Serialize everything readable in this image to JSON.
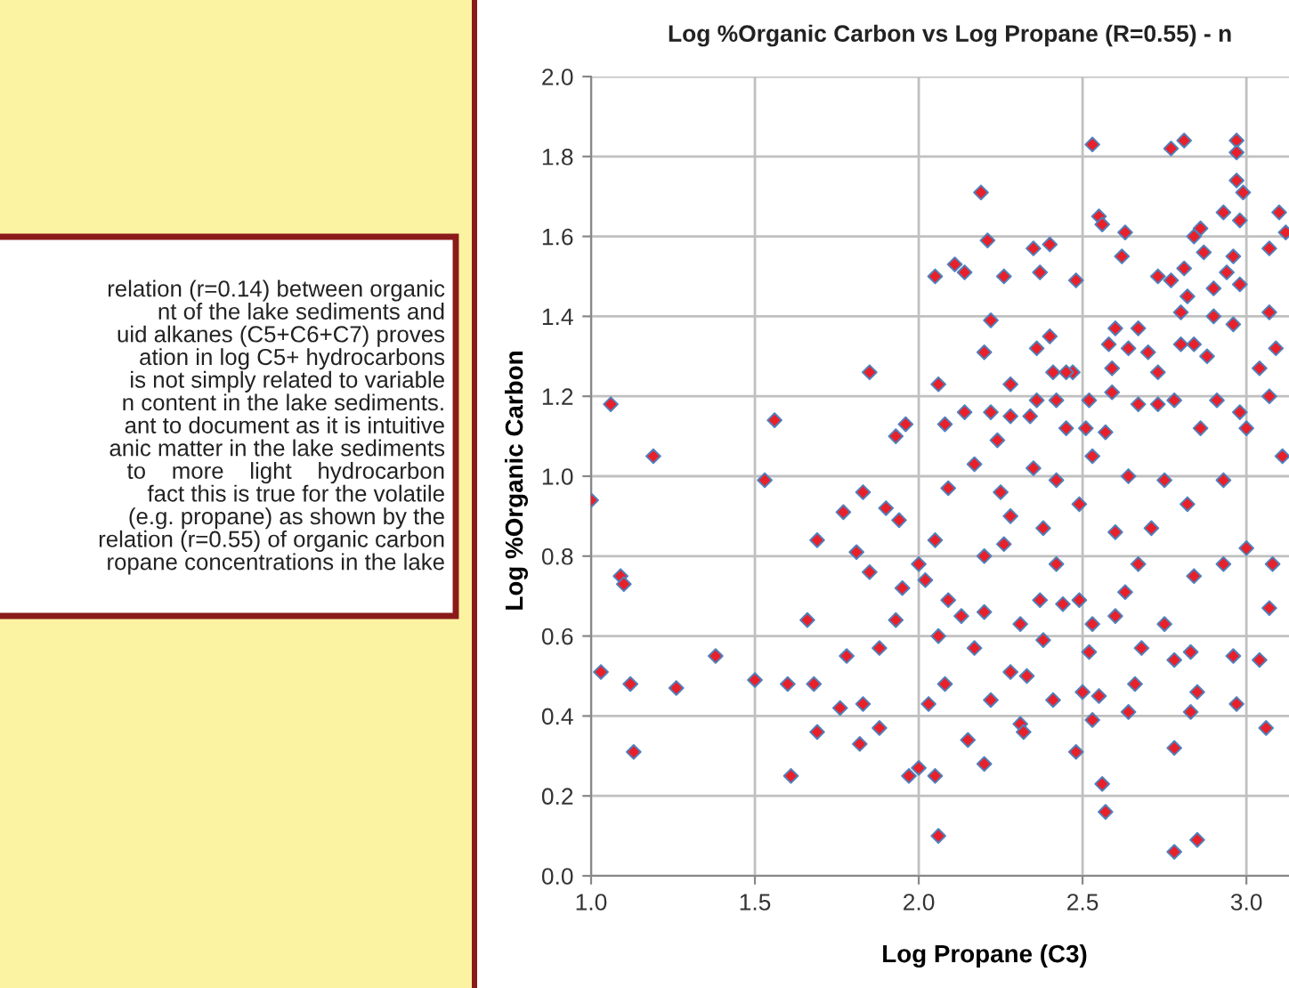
{
  "chart_data": {
    "type": "scatter",
    "title": "Log %Organic Carbon vs Log Propane (R=0.55) - n",
    "xlabel": "Log Propane (C3)",
    "ylabel": "Log %Organic Carbon",
    "annotations": [
      "relation (r=0.14) between organic\nnt of the lake sediments and\nuid alkanes (C5+C6+C7) proves\nation in log C5+ hydrocarbons\nis not simply related to variable\nn content in the lake sediments.\nant to document as it is intuitive\nanic matter in the lake sediments\nto    more    light    hydrocarbon\nfact this is true for the volatile\n(e.g. propane) as shown by the\nrelation (r=0.55) of organic carbon\nropane concentrations in the lake"
    ],
    "xlim": [
      1.0,
      3.13
    ],
    "ylim": [
      0,
      2
    ],
    "xticks": [
      {
        "value": 1,
        "label": "1.0"
      },
      {
        "value": 1.5,
        "label": "1.5"
      },
      {
        "value": 2,
        "label": "2.0"
      },
      {
        "value": 2.5,
        "label": "2.5"
      },
      {
        "value": 3,
        "label": "3.0"
      }
    ],
    "yticks": [
      {
        "value": 0,
        "label": "0.0"
      },
      {
        "value": 0.2,
        "label": "0.2"
      },
      {
        "value": 0.4,
        "label": "0.4"
      },
      {
        "value": 0.6,
        "label": "0.6"
      },
      {
        "value": 0.8,
        "label": "0.8"
      },
      {
        "value": 1,
        "label": "1.0"
      },
      {
        "value": 1.2,
        "label": "1.2"
      },
      {
        "value": 1.4,
        "label": "1.4"
      },
      {
        "value": 1.6,
        "label": "1.6"
      },
      {
        "value": 1.8,
        "label": "1.8"
      },
      {
        "value": 2,
        "label": "2.0"
      }
    ],
    "grid": true,
    "marker": "diamond",
    "series": [
      {
        "color": "#e8202a",
        "x": [
          1.0,
          1.19,
          1.03,
          1.09,
          1.1,
          1.12,
          1.13,
          1.26,
          1.38,
          1.5,
          1.53,
          1.6,
          1.61,
          1.66,
          1.69,
          1.69,
          1.68,
          1.76,
          1.77,
          1.78,
          1.81,
          1.82,
          1.83,
          1.83,
          1.88,
          1.9,
          1.85,
          1.88,
          1.94,
          1.93,
          1.97,
          2.0,
          2.05,
          2.06,
          2.03,
          2.0,
          2.05,
          2.08,
          2.15,
          2.2,
          2.22,
          2.17,
          2.13,
          2.09,
          2.25,
          2.31,
          2.32,
          2.26,
          2.33,
          2.37,
          2.41,
          2.42,
          2.48,
          2.5,
          2.53,
          2.56,
          2.57,
          2.55,
          2.52,
          2.49,
          2.64,
          2.66,
          2.68,
          2.78,
          2.78,
          2.85,
          2.78,
          2.83,
          2.83,
          2.85,
          2.97,
          2.96,
          3.04,
          3.06,
          3.07,
          3.08,
          2.75,
          2.63,
          2.6,
          2.53,
          2.44,
          2.31,
          2.2,
          2.09,
          2.02,
          1.95,
          2.06,
          2.17,
          2.28,
          2.38,
          2.28,
          2.38,
          2.49,
          2.6,
          2.71,
          2.82,
          2.93,
          3.0,
          2.93,
          2.75,
          2.64,
          2.53,
          2.35,
          2.84,
          2.67,
          2.2,
          2.42,
          3.11,
          1.06,
          1.56,
          1.85,
          1.93,
          1.96,
          2.06,
          2.05,
          2.11,
          2.14,
          2.19,
          2.21,
          2.22,
          2.2,
          2.26,
          2.28,
          2.35,
          2.4,
          2.37,
          2.48,
          2.47,
          2.36,
          2.4,
          2.53,
          2.55,
          2.56,
          2.63,
          2.62,
          2.6,
          2.58,
          2.64,
          2.67,
          2.77,
          2.81,
          2.97,
          2.97,
          2.97,
          2.99,
          2.93,
          2.98,
          2.86,
          2.84,
          2.87,
          2.96,
          3.1,
          3.07,
          3.12,
          2.73,
          2.77,
          2.81,
          2.82,
          2.9,
          2.98,
          2.94,
          2.8,
          2.9,
          2.96,
          2.84,
          2.88,
          2.8,
          3.07,
          3.04,
          3.09,
          2.7,
          2.73,
          2.52,
          2.67,
          2.78,
          2.91,
          2.98,
          3.07,
          2.59,
          2.59,
          2.45,
          2.41,
          2.36,
          2.42,
          2.14,
          2.22,
          2.28,
          2.34,
          2.08,
          2.24,
          2.45,
          2.51,
          2.57,
          2.73,
          2.86,
          3.0
        ],
        "values": [
          0.94,
          1.05,
          0.51,
          0.75,
          0.73,
          0.48,
          0.31,
          0.47,
          0.55,
          0.49,
          0.99,
          0.48,
          0.25,
          0.64,
          0.84,
          0.36,
          0.48,
          0.42,
          0.91,
          0.55,
          0.81,
          0.33,
          0.96,
          0.43,
          0.37,
          0.92,
          0.76,
          0.57,
          0.89,
          0.64,
          0.25,
          0.27,
          0.25,
          0.1,
          0.43,
          0.78,
          0.84,
          0.48,
          0.34,
          0.28,
          0.44,
          1.03,
          0.65,
          0.97,
          0.96,
          0.38,
          0.36,
          0.83,
          0.5,
          0.69,
          0.44,
          0.99,
          0.31,
          0.46,
          0.39,
          0.23,
          0.16,
          0.45,
          0.56,
          0.69,
          0.41,
          0.48,
          0.57,
          0.32,
          0.06,
          0.09,
          0.54,
          0.41,
          0.56,
          0.46,
          0.43,
          0.55,
          0.54,
          0.37,
          0.67,
          0.78,
          0.63,
          0.71,
          0.65,
          0.63,
          0.68,
          0.63,
          0.66,
          0.69,
          0.74,
          0.72,
          0.6,
          0.57,
          0.51,
          0.59,
          0.9,
          0.87,
          0.93,
          0.86,
          0.87,
          0.93,
          0.78,
          0.82,
          0.99,
          0.99,
          1.0,
          1.05,
          1.02,
          0.75,
          0.78,
          0.8,
          0.78,
          1.05,
          1.18,
          1.14,
          1.26,
          1.1,
          1.13,
          1.23,
          1.5,
          1.53,
          1.51,
          1.71,
          1.59,
          1.39,
          1.31,
          1.5,
          1.23,
          1.57,
          1.58,
          1.51,
          1.49,
          1.26,
          1.32,
          1.35,
          1.83,
          1.65,
          1.63,
          1.61,
          1.55,
          1.37,
          1.33,
          1.32,
          1.37,
          1.82,
          1.84,
          1.84,
          1.81,
          1.74,
          1.71,
          1.66,
          1.64,
          1.62,
          1.6,
          1.56,
          1.55,
          1.66,
          1.57,
          1.61,
          1.5,
          1.49,
          1.52,
          1.45,
          1.47,
          1.48,
          1.51,
          1.41,
          1.4,
          1.38,
          1.33,
          1.3,
          1.33,
          1.41,
          1.27,
          1.32,
          1.31,
          1.26,
          1.19,
          1.18,
          1.19,
          1.19,
          1.16,
          1.2,
          1.27,
          1.21,
          1.26,
          1.26,
          1.19,
          1.19,
          1.16,
          1.16,
          1.15,
          1.15,
          1.13,
          1.09,
          1.12,
          1.12,
          1.11,
          1.18,
          1.12,
          1.12
        ]
      }
    ]
  }
}
